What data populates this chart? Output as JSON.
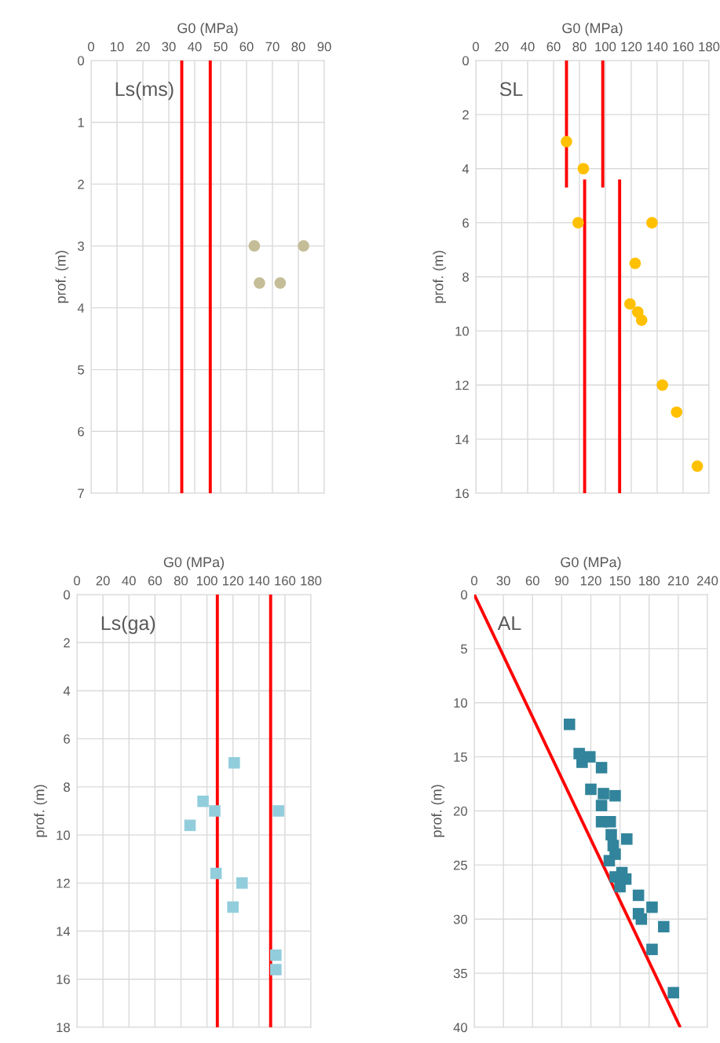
{
  "chart_data": [
    {
      "type": "scatter",
      "xlabel": "G0 (MPa)",
      "ylabel": "prof. (m)",
      "annotations": [
        "Ls(ms)"
      ],
      "xlim": [
        0,
        90
      ],
      "xticks": [
        0,
        10,
        20,
        30,
        40,
        50,
        60,
        70,
        80,
        90
      ],
      "ylim": [
        7,
        0
      ],
      "yticks": [
        0,
        1,
        2,
        3,
        4,
        5,
        6,
        7
      ],
      "grid": true,
      "legend": false,
      "series": [
        {
          "marker": "circle",
          "color": "#c4bd97",
          "x": [
            63,
            82,
            65,
            73
          ],
          "values": [
            3,
            3,
            3.6,
            3.6
          ]
        },
        {
          "type": "line",
          "color": "#ff0000",
          "x": [
            35,
            35
          ],
          "values": [
            0,
            7
          ]
        },
        {
          "type": "line",
          "color": "#ff0000",
          "x": [
            46,
            46
          ],
          "values": [
            0,
            7
          ]
        }
      ]
    },
    {
      "type": "scatter",
      "xlabel": "G0 (MPa)",
      "ylabel": "prof. (m)",
      "annotations": [
        "SL"
      ],
      "xlim": [
        0,
        180
      ],
      "xticks": [
        0,
        20,
        40,
        60,
        80,
        100,
        120,
        140,
        160,
        180
      ],
      "ylim": [
        16,
        0
      ],
      "yticks": [
        0,
        2,
        4,
        6,
        8,
        10,
        12,
        14,
        16
      ],
      "grid": true,
      "legend": false,
      "series": [
        {
          "marker": "circle",
          "color": "#ffc000",
          "x": [
            70,
            83,
            79,
            136,
            123,
            119,
            125,
            128,
            144,
            155,
            171
          ],
          "values": [
            3,
            4,
            6,
            6,
            7.5,
            9,
            9.3,
            9.6,
            12,
            13,
            15
          ]
        },
        {
          "type": "line",
          "color": "#ff0000",
          "x": [
            70,
            70
          ],
          "values": [
            0,
            4.7
          ]
        },
        {
          "type": "line",
          "color": "#ff0000",
          "x": [
            98,
            98
          ],
          "values": [
            0,
            4.7
          ]
        },
        {
          "type": "line",
          "color": "#ff0000",
          "x": [
            84,
            84
          ],
          "values": [
            4.4,
            16
          ]
        },
        {
          "type": "line",
          "color": "#ff0000",
          "x": [
            111,
            111
          ],
          "values": [
            4.4,
            16
          ]
        }
      ]
    },
    {
      "type": "scatter",
      "xlabel": "G0 (MPa)",
      "ylabel": "prof. (m)",
      "annotations": [
        "Ls(ga)"
      ],
      "xlim": [
        0,
        180
      ],
      "xticks": [
        0,
        20,
        40,
        60,
        80,
        100,
        120,
        140,
        160,
        180
      ],
      "ylim": [
        18,
        0
      ],
      "yticks": [
        0,
        2,
        4,
        6,
        8,
        10,
        12,
        14,
        16,
        18
      ],
      "grid": true,
      "legend": false,
      "series": [
        {
          "marker": "square",
          "color": "#92cddc",
          "x": [
            121,
            97,
            106,
            155,
            87,
            107,
            127,
            120,
            153,
            153
          ],
          "values": [
            7,
            8.6,
            9,
            9,
            9.6,
            11.6,
            12,
            13,
            15,
            15.6
          ]
        },
        {
          "type": "line",
          "color": "#ff0000",
          "x": [
            108,
            108
          ],
          "values": [
            0,
            18
          ]
        },
        {
          "type": "line",
          "color": "#ff0000",
          "x": [
            149,
            149
          ],
          "values": [
            0,
            18
          ]
        }
      ]
    },
    {
      "type": "scatter",
      "xlabel": "G0 (MPa)",
      "ylabel": "prof. (m)",
      "annotations": [
        "AL"
      ],
      "xlim": [
        0,
        240
      ],
      "xticks": [
        0,
        30,
        60,
        90,
        120,
        150,
        180,
        210,
        240
      ],
      "ylim": [
        40,
        0
      ],
      "yticks": [
        0,
        5,
        10,
        15,
        20,
        25,
        30,
        35,
        40
      ],
      "grid": true,
      "legend": false,
      "series": [
        {
          "marker": "square",
          "color": "#31849b",
          "x": [
            98,
            108,
            119,
            111,
            131,
            120,
            133,
            145,
            131,
            131,
            140,
            141,
            157,
            143,
            145,
            139,
            152,
            145,
            156,
            150,
            169,
            183,
            169,
            172,
            195,
            183,
            205
          ],
          "values": [
            12,
            14.7,
            15,
            15.5,
            16,
            18,
            18.4,
            18.6,
            19.5,
            21,
            21,
            22.2,
            22.6,
            23.2,
            24,
            24.6,
            25.7,
            26.1,
            26.3,
            27,
            27.8,
            28.9,
            29.5,
            30,
            30.7,
            32.8,
            36.8
          ]
        },
        {
          "type": "line",
          "color": "#ff0000",
          "x": [
            0,
            212
          ],
          "values": [
            0,
            40
          ]
        }
      ]
    }
  ]
}
